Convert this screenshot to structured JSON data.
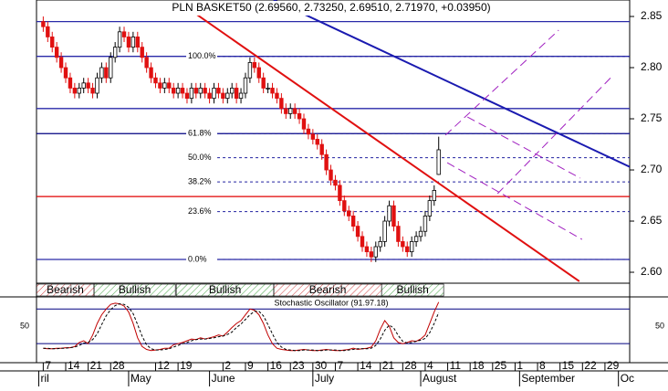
{
  "chart_data": {
    "type": "candlestick",
    "title": "PLN BASKET50 (2.69560, 2.73250, 2.69510, 2.71970, +0.03950)",
    "open": [
      2.845,
      2.84,
      2.83,
      2.82,
      2.81,
      2.8,
      2.79,
      2.78,
      2.775,
      2.78,
      2.785,
      2.78,
      2.775,
      2.79,
      2.8,
      2.79,
      2.81,
      2.82,
      2.835,
      2.83,
      2.82,
      2.83,
      2.82,
      2.81,
      2.8,
      2.79,
      2.785,
      2.78,
      2.785,
      2.78,
      2.775,
      2.78,
      2.775,
      2.77,
      2.78,
      2.775,
      2.78,
      2.775,
      2.77,
      2.78,
      2.775,
      2.77,
      2.775,
      2.78,
      2.77,
      2.775,
      2.79,
      2.805,
      2.8,
      2.79,
      2.78,
      2.78,
      2.775,
      2.77,
      2.76,
      2.755,
      2.76,
      2.755,
      2.75,
      2.74,
      2.735,
      2.73,
      2.725,
      2.715,
      2.7,
      2.69,
      2.685,
      2.67,
      2.66,
      2.655,
      2.645,
      2.635,
      2.625,
      2.62,
      2.615,
      2.625,
      2.63,
      2.65,
      2.665,
      2.645,
      2.63,
      2.625,
      2.62,
      2.63,
      2.635,
      2.64,
      2.655,
      2.67,
      2.6956
    ],
    "high": [
      2.85,
      2.845,
      2.835,
      2.825,
      2.815,
      2.805,
      2.795,
      2.785,
      2.785,
      2.79,
      2.79,
      2.785,
      2.795,
      2.805,
      2.805,
      2.815,
      2.825,
      2.84,
      2.84,
      2.835,
      2.835,
      2.835,
      2.825,
      2.815,
      2.805,
      2.795,
      2.79,
      2.79,
      2.79,
      2.785,
      2.785,
      2.785,
      2.78,
      2.785,
      2.785,
      2.785,
      2.785,
      2.78,
      2.785,
      2.785,
      2.78,
      2.78,
      2.785,
      2.785,
      2.78,
      2.795,
      2.81,
      2.81,
      2.805,
      2.795,
      2.785,
      2.785,
      2.78,
      2.775,
      2.765,
      2.765,
      2.765,
      2.76,
      2.755,
      2.745,
      2.74,
      2.735,
      2.73,
      2.72,
      2.705,
      2.695,
      2.69,
      2.675,
      2.665,
      2.66,
      2.65,
      2.64,
      2.63,
      2.625,
      2.63,
      2.635,
      2.655,
      2.67,
      2.67,
      2.65,
      2.635,
      2.63,
      2.635,
      2.64,
      2.645,
      2.66,
      2.675,
      2.685,
      2.7325
    ],
    "low": [
      2.835,
      2.825,
      2.815,
      2.805,
      2.795,
      2.785,
      2.775,
      2.77,
      2.77,
      2.775,
      2.775,
      2.77,
      2.77,
      2.785,
      2.785,
      2.785,
      2.805,
      2.815,
      2.825,
      2.815,
      2.815,
      2.815,
      2.805,
      2.795,
      2.785,
      2.78,
      2.775,
      2.775,
      2.775,
      2.77,
      2.77,
      2.77,
      2.765,
      2.765,
      2.77,
      2.77,
      2.77,
      2.765,
      2.765,
      2.77,
      2.765,
      2.765,
      2.77,
      2.765,
      2.765,
      2.77,
      2.785,
      2.795,
      2.785,
      2.775,
      2.775,
      2.77,
      2.765,
      2.755,
      2.75,
      2.75,
      2.75,
      2.745,
      2.735,
      2.73,
      2.725,
      2.72,
      2.71,
      2.695,
      2.685,
      2.68,
      2.665,
      2.655,
      2.65,
      2.64,
      2.63,
      2.62,
      2.615,
      2.61,
      2.61,
      2.62,
      2.625,
      2.645,
      2.64,
      2.625,
      2.62,
      2.615,
      2.615,
      2.625,
      2.63,
      2.635,
      2.65,
      2.665,
      2.6951
    ],
    "close": [
      2.84,
      2.83,
      2.82,
      2.81,
      2.8,
      2.79,
      2.78,
      2.775,
      2.78,
      2.785,
      2.78,
      2.775,
      2.79,
      2.8,
      2.79,
      2.81,
      2.82,
      2.835,
      2.83,
      2.82,
      2.83,
      2.82,
      2.81,
      2.8,
      2.79,
      2.785,
      2.78,
      2.785,
      2.78,
      2.775,
      2.78,
      2.775,
      2.77,
      2.78,
      2.775,
      2.78,
      2.775,
      2.77,
      2.78,
      2.775,
      2.77,
      2.775,
      2.78,
      2.77,
      2.775,
      2.79,
      2.805,
      2.8,
      2.79,
      2.78,
      2.78,
      2.775,
      2.77,
      2.76,
      2.755,
      2.76,
      2.755,
      2.75,
      2.74,
      2.735,
      2.73,
      2.725,
      2.715,
      2.7,
      2.69,
      2.685,
      2.67,
      2.66,
      2.655,
      2.645,
      2.635,
      2.625,
      2.62,
      2.615,
      2.625,
      2.63,
      2.65,
      2.665,
      2.645,
      2.63,
      2.625,
      2.62,
      2.63,
      2.635,
      2.64,
      2.655,
      2.67,
      2.68,
      2.7197
    ],
    "up_color": "#ffffff",
    "down_color": "#e01010",
    "xlim": [
      -1.5,
      130.5
    ],
    "ylim": [
      2.5893,
      2.8661
    ],
    "yticks": [
      {
        "value": 2.6,
        "label": "2.60"
      },
      2.65,
      {
        "value": 2.7,
        "label": "2.70"
      },
      2.75,
      {
        "value": 2.8,
        "label": "2.80"
      },
      2.85
    ],
    "xticks": [
      {
        "value": 0,
        "label": "7"
      },
      {
        "value": 5,
        "label": "14"
      },
      {
        "value": 10,
        "label": "21"
      },
      {
        "value": 15,
        "label": "28"
      },
      {
        "value": 25,
        "label": "12"
      },
      {
        "value": 30,
        "label": "19"
      },
      {
        "value": 40,
        "label": "2"
      },
      {
        "value": 45,
        "label": "9"
      },
      {
        "value": 50,
        "label": "16"
      },
      {
        "value": 55,
        "label": "23"
      },
      {
        "value": 60,
        "label": "30"
      },
      {
        "value": 65,
        "label": "7"
      },
      {
        "value": 70,
        "label": "14"
      },
      {
        "value": 75,
        "label": "21"
      },
      {
        "value": 80,
        "label": "28"
      },
      {
        "value": 85,
        "label": "4"
      },
      {
        "value": 90,
        "label": "11"
      },
      {
        "value": 95,
        "label": "18"
      },
      {
        "value": 100,
        "label": "25"
      },
      {
        "value": 105,
        "label": "1"
      },
      {
        "value": 110,
        "label": "8"
      },
      {
        "value": 115,
        "label": "15"
      },
      {
        "value": 120,
        "label": "22"
      },
      {
        "value": 125,
        "label": "29"
      }
    ],
    "month_labels": [
      {
        "value": -1,
        "label": "ril"
      },
      {
        "value": 19,
        "label": "May"
      },
      {
        "value": 37,
        "label": "June"
      },
      {
        "value": 60,
        "label": "July"
      },
      {
        "value": 84,
        "label": "August"
      },
      {
        "value": 106,
        "label": "September"
      },
      {
        "value": 128,
        "label": "Oc"
      }
    ],
    "hlines": [
      {
        "value": 2.845,
        "color": "#2a2aa8"
      },
      {
        "value": 2.811,
        "color": "#2a2aa8"
      },
      {
        "value": 2.76,
        "color": "#2a2aa8"
      },
      {
        "value": 2.7355,
        "color": "#000080"
      },
      {
        "value": 2.6125,
        "color": "#2a2aa8"
      },
      {
        "value": 2.674,
        "color": "#e00000"
      }
    ],
    "fibonacci": {
      "start": 31,
      "color": "#2020a0",
      "levels": [
        {
          "value": 2.811,
          "label": "100.0%"
        },
        {
          "value": 2.7355,
          "label": "61.8%"
        },
        {
          "value": 2.712,
          "label": "50.0%"
        },
        {
          "value": 2.6883,
          "label": "38.2%"
        },
        {
          "value": 2.6593,
          "label": "23.6%"
        },
        {
          "value": 2.6125,
          "label": "0.0%"
        }
      ]
    },
    "trendlines": [
      {
        "x": [
          31.0,
          119.3
        ],
        "y": [
          2.8616,
          2.5911
        ],
        "color": "#e01010",
        "dashed": false
      },
      {
        "x": [
          51.3,
          130.5
        ],
        "y": [
          2.8661,
          2.7031
        ],
        "color": "#1a1ab0",
        "dashed": false
      },
      {
        "x": [
          89.5,
          114.7
        ],
        "y": [
          2.734,
          2.8366
        ],
        "color": "#a020c0",
        "dashed": true
      },
      {
        "x": [
          101.1,
          126.9
        ],
        "y": [
          2.6768,
          2.7929
        ],
        "color": "#a020c0",
        "dashed": true
      },
      {
        "x": [
          89.9,
          119.9
        ],
        "y": [
          2.7071,
          2.6321
        ],
        "color": "#a020c0",
        "dashed": true
      },
      {
        "x": [
          94.4,
          119.5
        ],
        "y": [
          2.7518,
          2.692
        ],
        "color": "#a020c0",
        "dashed": true
      }
    ],
    "signals": [
      {
        "start": -1.5,
        "end": 11.3,
        "label": "Bearish",
        "color": "#d04040"
      },
      {
        "start": 11.3,
        "end": 29.4,
        "label": "Bullish",
        "color": "#40a040"
      },
      {
        "start": 29.6,
        "end": 51.3,
        "label": "Bullish",
        "color": "#40a040"
      },
      {
        "start": 51.3,
        "end": 75.3,
        "label": "Bearish",
        "color": "#d04040"
      },
      {
        "start": 75.3,
        "end": 89.1,
        "label": "Bullish",
        "color": "#40a040"
      }
    ],
    "stochastic": {
      "title": "Stochastic Oscillator (91.97.18)",
      "ylim": [
        -13,
        101
      ],
      "yticks": [
        50
      ],
      "levels": [
        20,
        80
      ],
      "k_color": "#c00000",
      "d_color": "#000000",
      "k": [
        12,
        11,
        11,
        12,
        12,
        13,
        13,
        15,
        22,
        25,
        20,
        35,
        55,
        70,
        80,
        88,
        90,
        89,
        85,
        75,
        55,
        30,
        15,
        10,
        8,
        9,
        10,
        12,
        12,
        18,
        20,
        22,
        25,
        28,
        27,
        30,
        28,
        30,
        32,
        35,
        33,
        40,
        48,
        55,
        60,
        70,
        80,
        78,
        70,
        55,
        35,
        20,
        12,
        10,
        9,
        8,
        8,
        9,
        10,
        9,
        8,
        8,
        9,
        10,
        9,
        8,
        8,
        9,
        10,
        12,
        10,
        11,
        12,
        14,
        25,
        45,
        60,
        50,
        30,
        22,
        20,
        22,
        25,
        24,
        28,
        35,
        55,
        75,
        92
      ],
      "d": [
        12,
        12,
        11,
        11,
        12,
        12,
        13,
        14,
        17,
        21,
        22,
        27,
        37,
        53,
        68,
        79,
        86,
        89,
        88,
        83,
        72,
        53,
        33,
        18,
        11,
        9,
        9,
        10,
        11,
        14,
        17,
        20,
        22,
        25,
        27,
        28,
        28,
        29,
        30,
        32,
        33,
        36,
        40,
        48,
        54,
        62,
        70,
        76,
        76,
        68,
        53,
        37,
        22,
        14,
        10,
        9,
        8,
        8,
        9,
        9,
        9,
        8,
        8,
        9,
        9,
        9,
        8,
        8,
        9,
        10,
        11,
        11,
        11,
        12,
        17,
        28,
        43,
        52,
        47,
        34,
        24,
        21,
        22,
        24,
        26,
        29,
        39,
        55,
        74
      ]
    }
  }
}
